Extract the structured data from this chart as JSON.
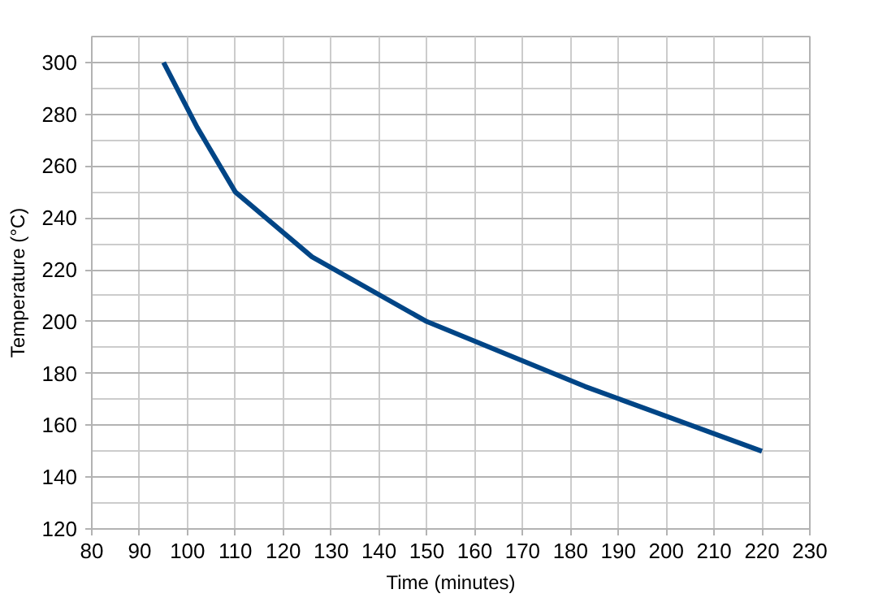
{
  "chart_data": {
    "type": "line",
    "xlabel": "Time (minutes)",
    "ylabel": "Temperature (°C)",
    "x": [
      95,
      102,
      110,
      126,
      150,
      183,
      220
    ],
    "series": [
      {
        "color": "#004586",
        "values": [
          300,
          275,
          250,
          225,
          200,
          175,
          150
        ]
      }
    ],
    "xlim": [
      80,
      230
    ],
    "xticks": [
      80,
      90,
      100,
      110,
      120,
      130,
      140,
      150,
      160,
      170,
      180,
      190,
      200,
      210,
      220,
      230
    ],
    "ylim": [
      120,
      310
    ],
    "yticks": [
      120,
      140,
      160,
      180,
      200,
      220,
      240,
      260,
      280,
      300
    ],
    "grid": true,
    "marker": "none",
    "line_style": "solid"
  }
}
